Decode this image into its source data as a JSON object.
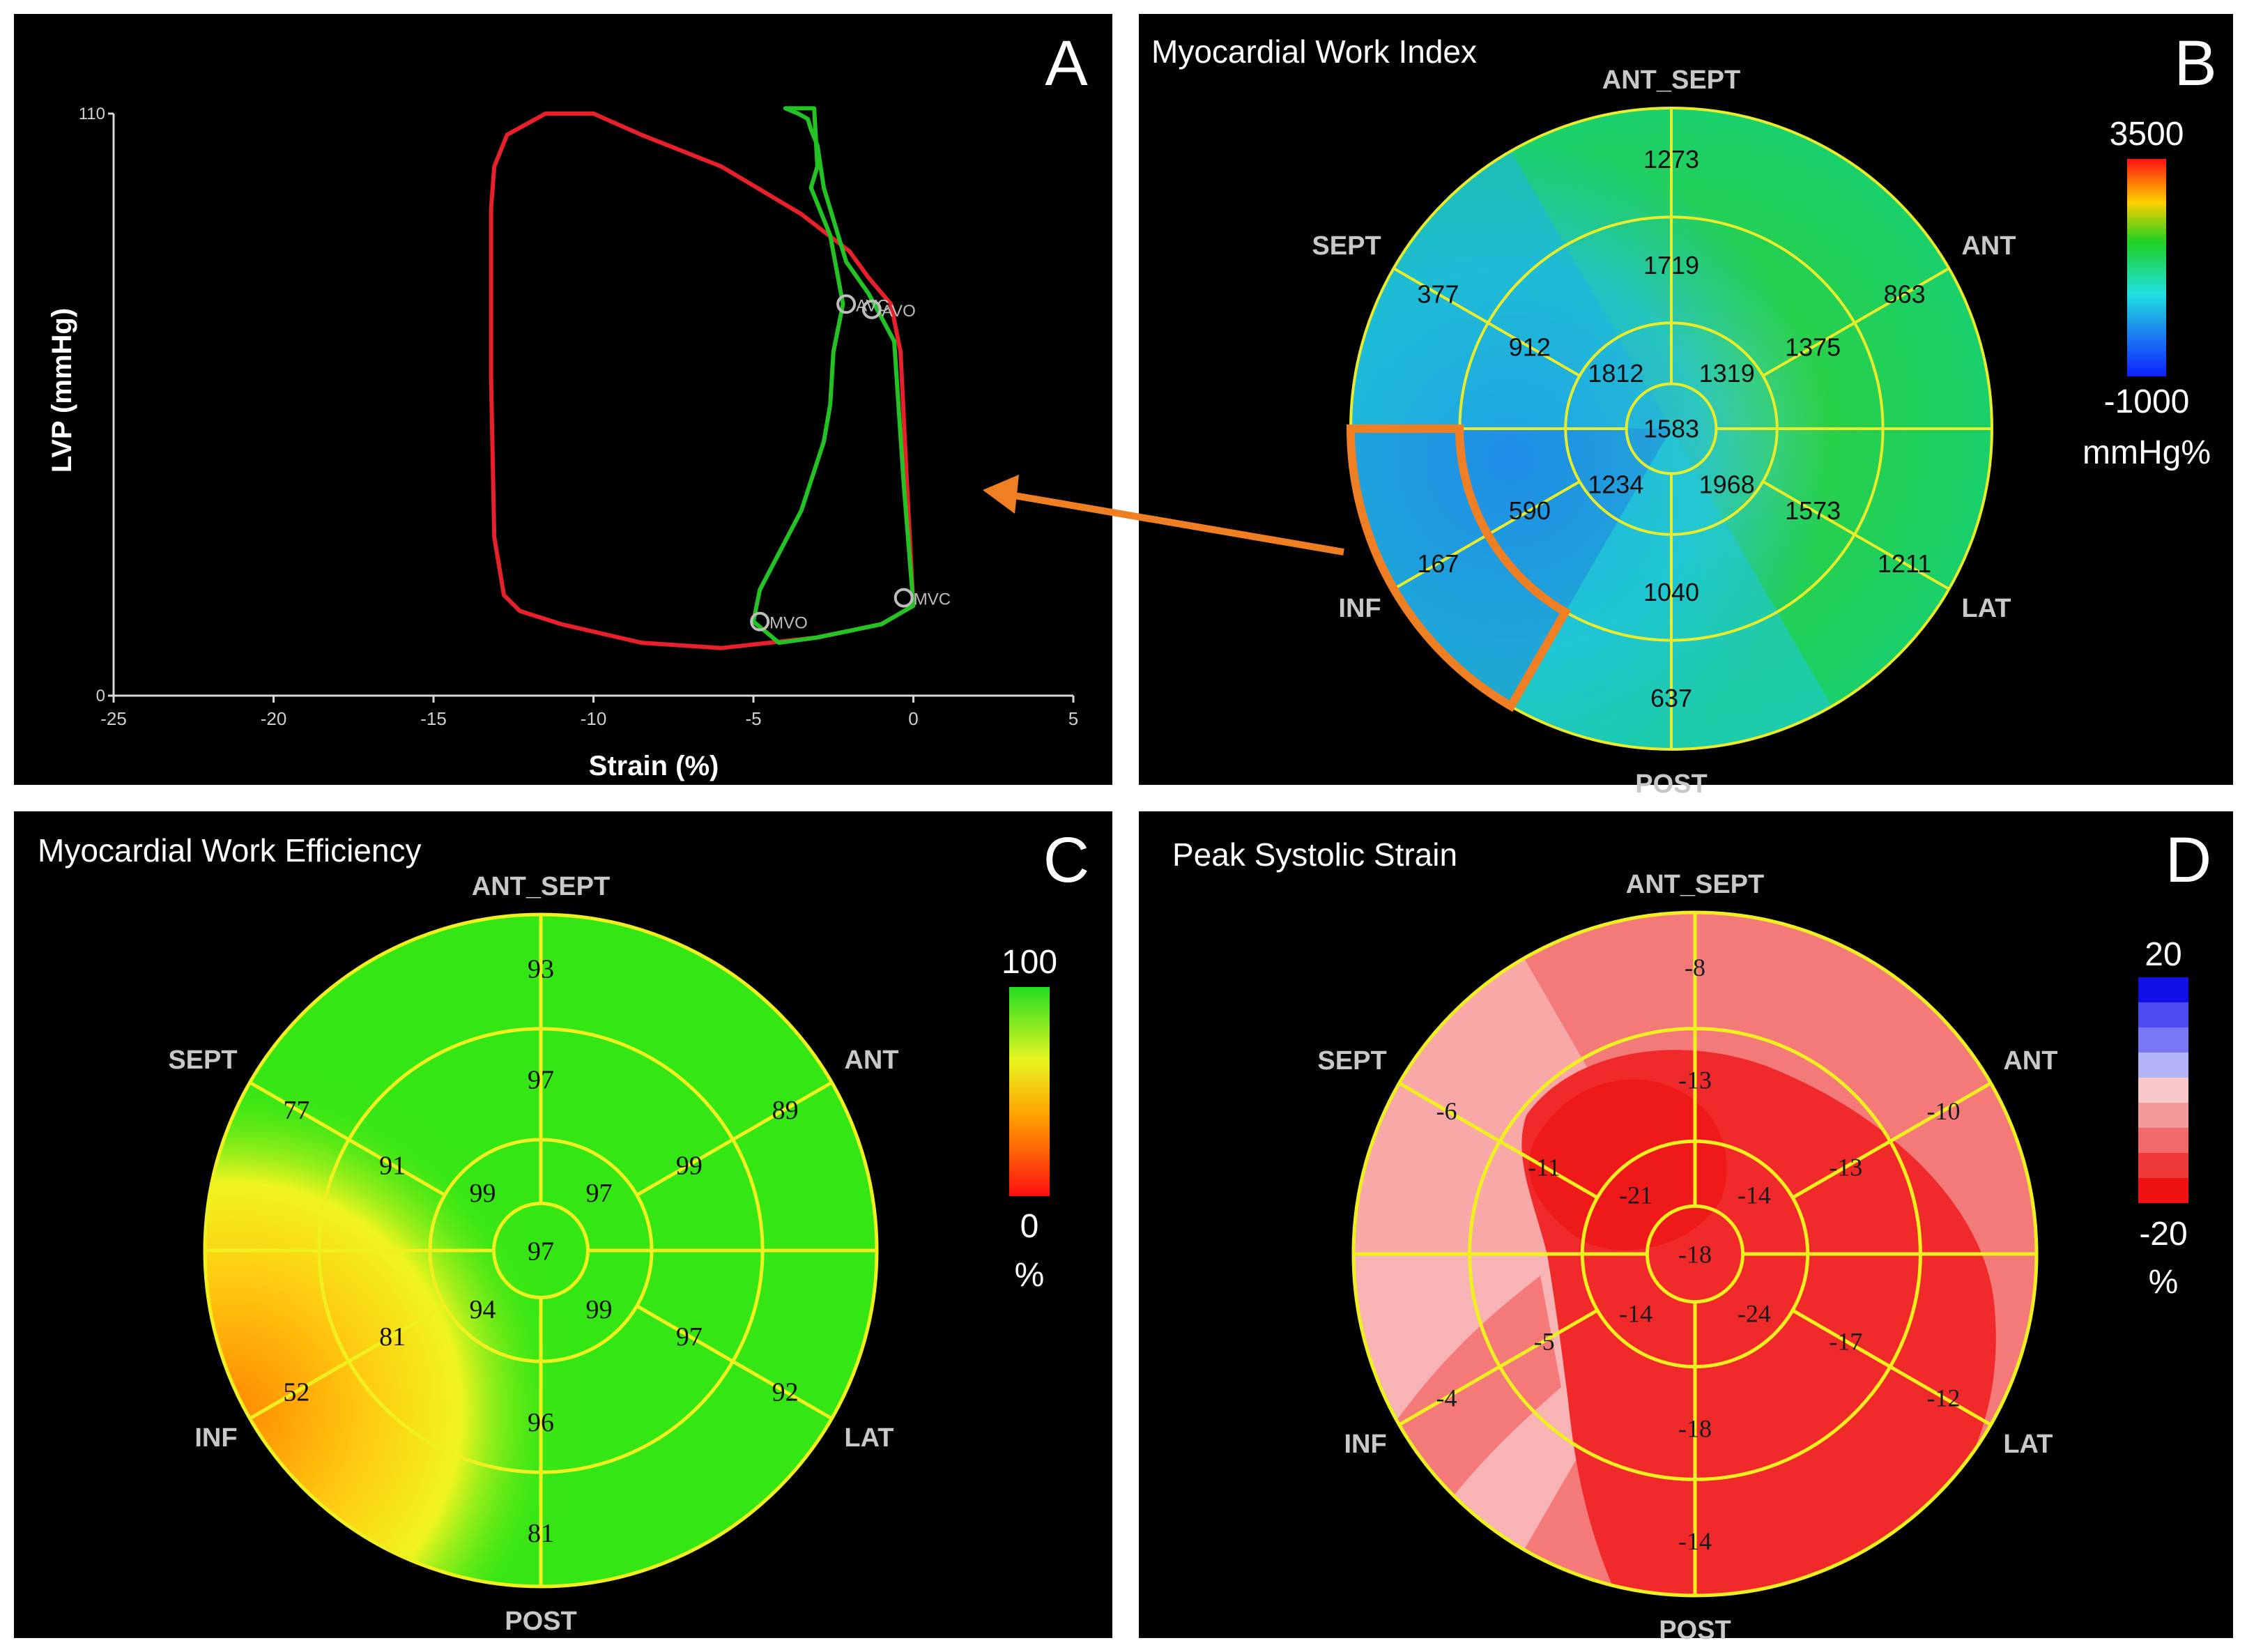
{
  "panels": {
    "A": {
      "letter": "A"
    },
    "B": {
      "letter": "B",
      "title": "Myocardial Work Index",
      "scale_max": "3500",
      "scale_min": "-1000",
      "scale_unit": "mmHg%"
    },
    "C": {
      "letter": "C",
      "title": "Myocardial Work Efficiency",
      "scale_max": "100",
      "scale_min": "0",
      "scale_unit": "%"
    },
    "D": {
      "letter": "D",
      "title": "Peak Systolic Strain",
      "scale_max": "20",
      "scale_min": "-20",
      "scale_unit": "%"
    }
  },
  "wall_labels": {
    "ant_sept": "ANT_SEPT",
    "ant": "ANT",
    "lat": "LAT",
    "post": "POST",
    "inf": "INF",
    "sept": "SEPT"
  },
  "chart_data": [
    {
      "type": "line",
      "panel": "A",
      "xlabel": "Strain (%)",
      "ylabel": "LVP (mmHg)",
      "xlim": [
        -25,
        5
      ],
      "ylim": [
        0,
        110
      ],
      "x_ticks": [
        "-25",
        "-20",
        "-15",
        "-10",
        "-5",
        "0",
        "5"
      ],
      "x_tick_values": [
        -25,
        -20,
        -15,
        -10,
        -5,
        0,
        5
      ],
      "y_ticks": [
        "0",
        "110"
      ],
      "y_tick_values": [
        0,
        110
      ],
      "series": [
        {
          "name": "loop-red",
          "color": "#e8202a",
          "points": [
            [
              -2,
              84
            ],
            [
              -3.5,
              91
            ],
            [
              -6,
              100
            ],
            [
              -8.5,
              106
            ],
            [
              -10,
              110
            ],
            [
              -11.5,
              110
            ],
            [
              -12.7,
              106
            ],
            [
              -13.1,
              100
            ],
            [
              -13.2,
              92
            ],
            [
              -13.2,
              60
            ],
            [
              -13.1,
              30
            ],
            [
              -12.8,
              19
            ],
            [
              -12.3,
              16
            ],
            [
              -11,
              13.5
            ],
            [
              -8.5,
              10
            ],
            [
              -6,
              9
            ],
            [
              -3,
              11
            ],
            [
              -1,
              13.5
            ],
            [
              0,
              17
            ],
            [
              -0.2,
              40
            ],
            [
              -0.4,
              65
            ],
            [
              -0.7,
              74
            ],
            [
              -1.4,
              79
            ],
            [
              -2,
              84
            ]
          ]
        },
        {
          "name": "loop-green",
          "color": "#22c322",
          "points": [
            [
              -2.2,
              74
            ],
            [
              -2.5,
              65
            ],
            [
              -2.6,
              55
            ],
            [
              -2.8,
              48
            ],
            [
              -3.5,
              35
            ],
            [
              -4.8,
              20
            ],
            [
              -5,
              14
            ],
            [
              -4.2,
              10
            ],
            [
              -3,
              11
            ],
            [
              -1,
              13.5
            ],
            [
              0,
              17
            ],
            [
              -0.3,
              40
            ],
            [
              -0.6,
              67
            ],
            [
              -1.4,
              76
            ],
            [
              -2.1,
              82
            ],
            [
              -2.8,
              96
            ],
            [
              -3,
              104
            ],
            [
              -3.2,
              107
            ],
            [
              -3.3,
              109
            ],
            [
              -3.6,
              110
            ],
            [
              -4,
              111
            ],
            [
              -3.1,
              111
            ],
            [
              -3,
              100
            ],
            [
              -3.2,
              96
            ],
            [
              -2.6,
              87
            ],
            [
              -2.2,
              74
            ]
          ]
        }
      ],
      "markers": [
        {
          "label": "AVC",
          "x": -2.1,
          "y": 74
        },
        {
          "label": "AVO",
          "x": -1.3,
          "y": 73
        },
        {
          "label": "MVC",
          "x": -0.3,
          "y": 18.5
        },
        {
          "label": "MVO",
          "x": -4.8,
          "y": 14
        }
      ]
    },
    {
      "type": "bullseye",
      "panel": "B",
      "title": "Myocardial Work Index",
      "segments": {
        "outer": [
          "1273",
          "863",
          "1211",
          "637",
          "167",
          "377"
        ],
        "mid": [
          "1719",
          "1375",
          "1573",
          "1040",
          "590",
          "912"
        ],
        "inner": [
          "1319",
          "1968",
          "1234",
          "1812"
        ],
        "apex": "1583"
      },
      "colorbar": {
        "max": 3500,
        "min": -1000,
        "unit": "mmHg%"
      }
    },
    {
      "type": "bullseye",
      "panel": "C",
      "title": "Myocardial Work Efficiency",
      "segments": {
        "outer": [
          "93",
          "89",
          "92",
          "81",
          "52",
          "77"
        ],
        "mid": [
          "97",
          "99",
          "97",
          "96",
          "81",
          "91"
        ],
        "inner": [
          "97",
          "99",
          "94",
          "99"
        ],
        "apex": "97"
      },
      "colorbar": {
        "max": 100,
        "min": 0,
        "unit": "%"
      }
    },
    {
      "type": "bullseye",
      "panel": "D",
      "title": "Peak Systolic Strain",
      "segments": {
        "outer": [
          "-8",
          "-10",
          "-12",
          "-14",
          "-4",
          "-6"
        ],
        "mid": [
          "-13",
          "-13",
          "-17",
          "-18",
          "-5",
          "-11"
        ],
        "inner": [
          "-14",
          "-24",
          "-14",
          "-21"
        ],
        "apex": "-18"
      },
      "colorbar": {
        "max": 20,
        "min": -20,
        "unit": "%"
      }
    }
  ]
}
